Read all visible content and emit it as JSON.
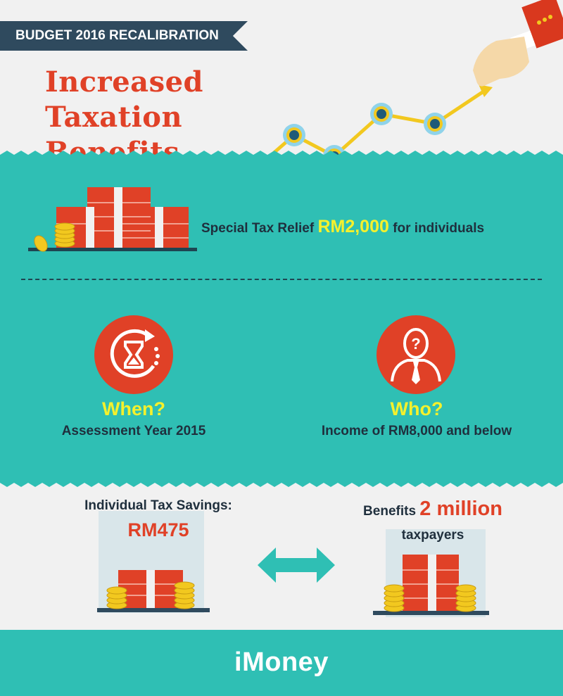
{
  "header": {
    "banner": "BUDGET 2016 RECALIBRATION",
    "title_line1": "Increased Taxation",
    "title_line2": "Benefits"
  },
  "relief": {
    "prefix": "Special Tax Relief",
    "amount": "RM2,000",
    "suffix": "for individuals"
  },
  "when": {
    "title": "When?",
    "detail": "Assessment Year 2015"
  },
  "who": {
    "title": "Who?",
    "detail": "Income of RM8,000 and below"
  },
  "savings": {
    "label": "Individual Tax Savings:",
    "value": "RM475"
  },
  "benefits": {
    "prefix": "Benefits",
    "amount": "2 million",
    "suffix": "taxpayers"
  },
  "footer": {
    "logo": "iMoney"
  },
  "colors": {
    "teal": "#2fbfb4",
    "red": "#e04127",
    "yellow": "#f5f12c",
    "navy": "#2f4a5e"
  },
  "icons": [
    "growth-chart-icon",
    "pointing-hand-icon",
    "money-stack-icon",
    "coin-stack-icon",
    "hourglass-refresh-icon",
    "person-question-icon",
    "double-arrow-icon"
  ]
}
